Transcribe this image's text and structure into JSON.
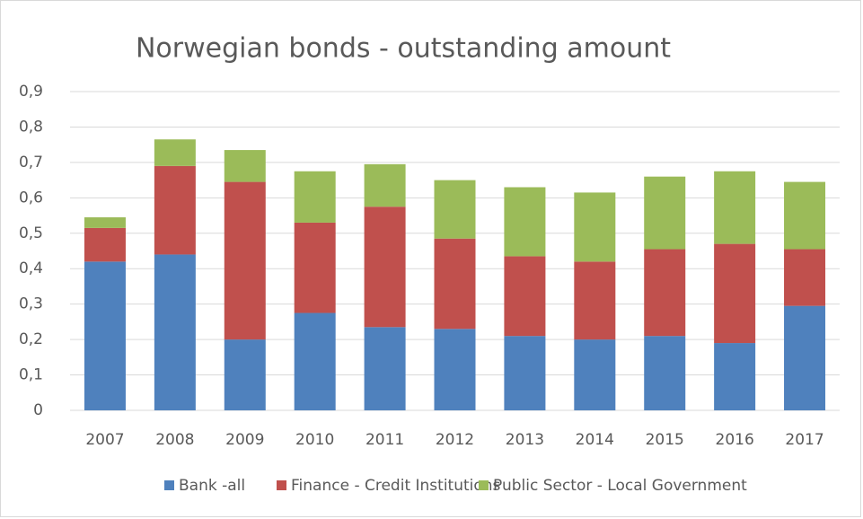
{
  "chart_data": {
    "type": "stacked_bar",
    "title": "Norwegian bonds - outstanding amount",
    "categories": [
      "2007",
      "2008",
      "2009",
      "2010",
      "2011",
      "2012",
      "2013",
      "2014",
      "2015",
      "2016",
      "2017"
    ],
    "series": [
      {
        "name": "Bank -all",
        "color": "#4f81bd",
        "values": [
          0.42,
          0.44,
          0.2,
          0.275,
          0.235,
          0.23,
          0.21,
          0.2,
          0.21,
          0.19,
          0.295
        ]
      },
      {
        "name": "Finance - Credit Institutions",
        "color": "#c0504d",
        "values": [
          0.095,
          0.25,
          0.445,
          0.255,
          0.34,
          0.255,
          0.225,
          0.22,
          0.245,
          0.28,
          0.16
        ]
      },
      {
        "name": "Public Sector - Local Government",
        "color": "#9bbb59",
        "values": [
          0.03,
          0.075,
          0.09,
          0.145,
          0.12,
          0.165,
          0.195,
          0.195,
          0.205,
          0.205,
          0.19
        ]
      }
    ],
    "ylim": [
      0,
      0.9
    ],
    "yticks": [
      0,
      {
        "value": 0.1,
        "label": "0,1"
      },
      {
        "value": 0.2,
        "label": "0,2"
      },
      {
        "value": 0.3,
        "label": "0,3"
      },
      {
        "value": 0.4,
        "label": "0,4"
      },
      {
        "value": 0.5,
        "label": "0,5"
      },
      {
        "value": 0.6,
        "label": "0,6"
      },
      {
        "value": 0.7,
        "label": "0,7"
      },
      {
        "value": 0.8,
        "label": "0,8"
      },
      {
        "value": 0.9,
        "label": "0,9"
      }
    ],
    "grid": true,
    "legend": "bottom"
  }
}
